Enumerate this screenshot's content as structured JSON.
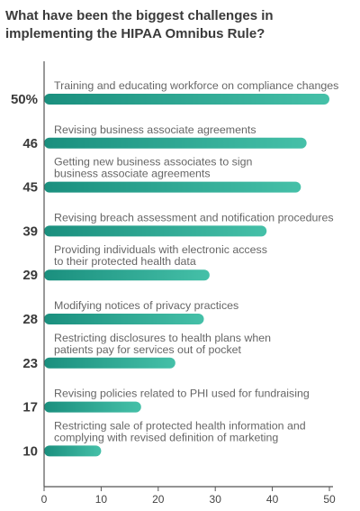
{
  "chart_data": {
    "type": "bar",
    "orientation": "horizontal",
    "title": "What have been the biggest challenges in implementing the HIPAA Omnibus Rule?",
    "categories": [
      [
        "Training and educating workforce on compliance changes"
      ],
      [
        "Revising business associate agreements"
      ],
      [
        "Getting new business associates to sign",
        "business associate agreements"
      ],
      [
        "Revising breach assessment and notification procedures"
      ],
      [
        "Providing individuals with electronic access",
        "to their protected health data"
      ],
      [
        "Modifying notices of privacy practices"
      ],
      [
        "Restricting disclosures to health plans when",
        "patients pay for services out of pocket"
      ],
      [
        "Revising policies related to PHI used for fundraising"
      ],
      [
        "Restricting sale of protected health information and",
        "complying with revised definition of marketing"
      ]
    ],
    "values": [
      50,
      46,
      45,
      39,
      29,
      28,
      23,
      17,
      10
    ],
    "value_labels": [
      "50%",
      "46",
      "45",
      "39",
      "29",
      "28",
      "23",
      "17",
      "10"
    ],
    "xlim": [
      0,
      50
    ],
    "xticks": [
      0,
      10,
      20,
      30,
      40,
      50
    ],
    "grid": false,
    "colors": {
      "bar_start": "#1a8f7e",
      "bar_end": "#45c0a8",
      "axis": "#555555"
    }
  }
}
